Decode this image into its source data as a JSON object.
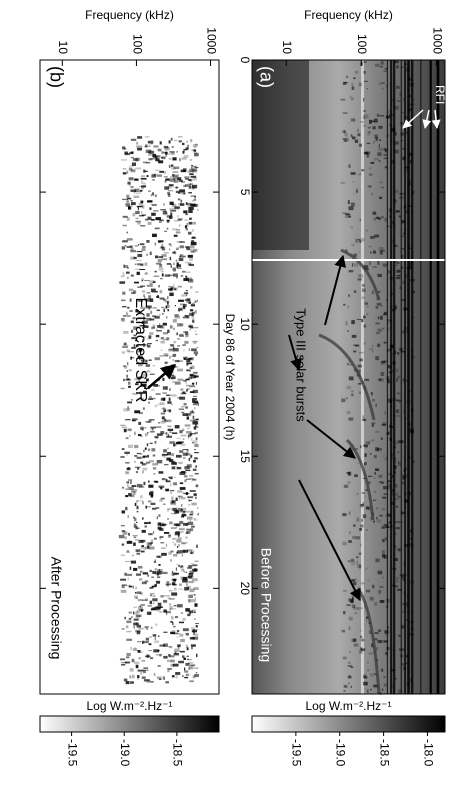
{
  "chart_data": [
    {
      "type": "spectrogram",
      "panel_label": "(a)",
      "y_label": "Frequency (kHz)",
      "x_label": "Day 86 of Year 2004 (h)",
      "xlim": [
        0,
        24
      ],
      "xticks": [
        0,
        5,
        10,
        15,
        20
      ],
      "ylim": [
        3.5,
        1300
      ],
      "yticks": [
        10,
        100,
        1000
      ],
      "log_y": true,
      "annotations": [
        "RFI",
        "Type III solar bursts",
        "Before Processing"
      ],
      "colorbar": {
        "label": "Log W.m⁻².Hz⁻¹",
        "lim": [
          -20.0,
          -17.8
        ],
        "ticks": [
          {
            "value": -18,
            "label": "-18.0"
          },
          -18.5,
          {
            "value": -19,
            "label": "-19.0"
          },
          -19.5
        ]
      }
    },
    {
      "type": "spectrogram",
      "panel_label": "(b)",
      "y_label": "Frequency (kHz)",
      "xlim": [
        0,
        24
      ],
      "xticks": [
        0,
        5,
        10,
        15,
        20
      ],
      "ylim": [
        5,
        1300
      ],
      "yticks": [
        10,
        100,
        1000
      ],
      "log_y": true,
      "annotations": [
        "Extracted SKR",
        "After Processing"
      ],
      "colorbar": {
        "label": "Log W.m⁻².Hz⁻¹",
        "lim": [
          -19.8,
          -18.1
        ],
        "ticks": [
          -18.5,
          {
            "value": -19,
            "label": "-19.0"
          },
          -19.5
        ]
      }
    }
  ]
}
